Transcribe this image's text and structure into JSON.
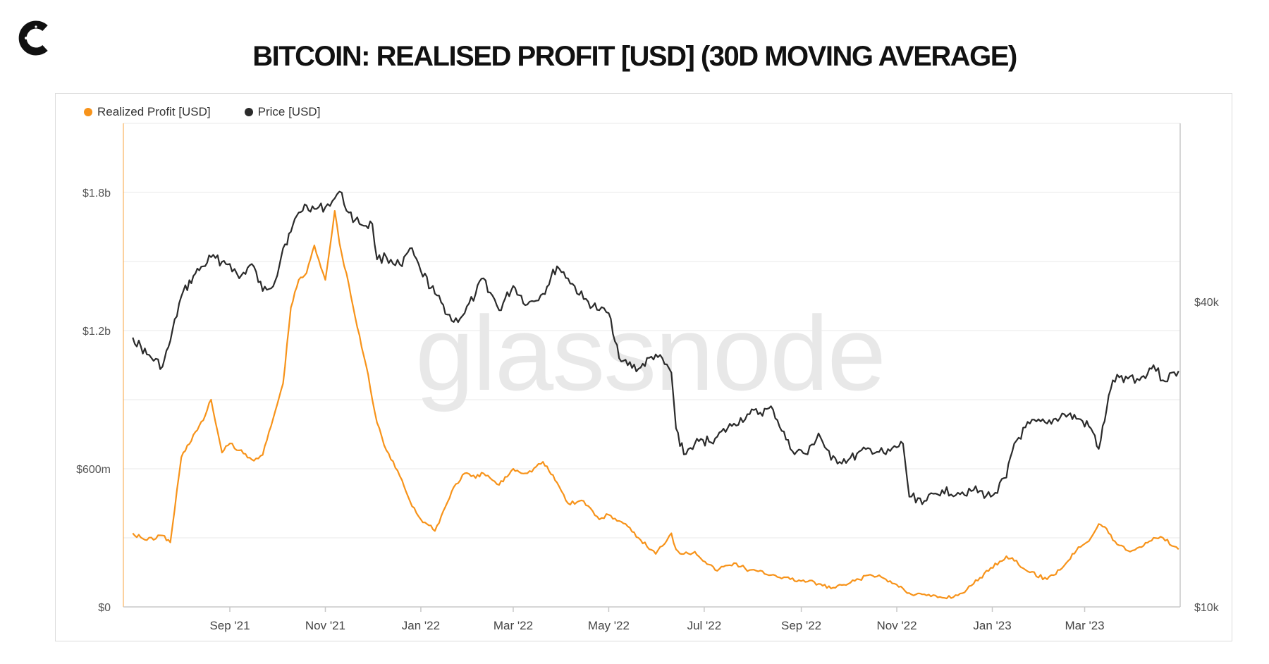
{
  "header": {
    "logo_icon": "cryptoslate-c-logo-icon",
    "title": "BITCOIN: REALISED PROFIT [USD] (30D MOVING AVERAGE)"
  },
  "colors": {
    "profit": "#f7931a",
    "price": "#2b2b2b",
    "grid": "#e9e9e9",
    "axis": "#c8c8c8"
  },
  "chart_data": {
    "type": "line",
    "title": "BITCOIN: REALISED PROFIT [USD] (30D MOVING AVERAGE)",
    "watermark": "glassnode",
    "legend_position": "top-left",
    "x": [
      "2021-07-01",
      "2021-07-10",
      "2021-07-20",
      "2021-07-25",
      "2021-08-01",
      "2021-08-10",
      "2021-08-15",
      "2021-08-20",
      "2021-08-27",
      "2021-09-01",
      "2021-09-07",
      "2021-09-15",
      "2021-09-22",
      "2021-09-30",
      "2021-10-05",
      "2021-10-10",
      "2021-10-15",
      "2021-10-20",
      "2021-10-25",
      "2021-11-01",
      "2021-11-07",
      "2021-11-10",
      "2021-11-16",
      "2021-11-20",
      "2021-11-27",
      "2021-12-01",
      "2021-12-04",
      "2021-12-10",
      "2021-12-20",
      "2021-12-25",
      "2022-01-01",
      "2022-01-10",
      "2022-01-22",
      "2022-01-29",
      "2022-02-05",
      "2022-02-10",
      "2022-02-20",
      "2022-03-01",
      "2022-03-10",
      "2022-03-20",
      "2022-03-29",
      "2022-04-05",
      "2022-04-15",
      "2022-04-25",
      "2022-05-01",
      "2022-05-09",
      "2022-05-20",
      "2022-05-31",
      "2022-06-10",
      "2022-06-13",
      "2022-06-18",
      "2022-06-25",
      "2022-07-08",
      "2022-07-20",
      "2022-07-30",
      "2022-08-14",
      "2022-08-25",
      "2022-09-05",
      "2022-09-12",
      "2022-09-20",
      "2022-10-01",
      "2022-10-15",
      "2022-10-25",
      "2022-11-05",
      "2022-11-09",
      "2022-11-20",
      "2022-11-30",
      "2022-12-10",
      "2022-12-20",
      "2022-12-31",
      "2023-01-10",
      "2023-01-15",
      "2023-01-25",
      "2023-02-05",
      "2023-02-16",
      "2023-02-25",
      "2023-03-05",
      "2023-03-10",
      "2023-03-15",
      "2023-03-19",
      "2023-03-30",
      "2023-04-05",
      "2023-04-14",
      "2023-04-20",
      "2023-04-30"
    ],
    "series": [
      {
        "name": "Realized Profit [USD]",
        "axis": "left",
        "values": [
          0.32,
          0.29,
          0.31,
          0.28,
          0.65,
          0.76,
          0.81,
          0.9,
          0.67,
          0.71,
          0.68,
          0.64,
          0.66,
          0.85,
          0.97,
          1.3,
          1.42,
          1.45,
          1.57,
          1.42,
          1.72,
          1.58,
          1.4,
          1.26,
          1.05,
          0.9,
          0.8,
          0.68,
          0.55,
          0.46,
          0.38,
          0.33,
          0.52,
          0.58,
          0.56,
          0.58,
          0.53,
          0.6,
          0.58,
          0.63,
          0.54,
          0.45,
          0.46,
          0.38,
          0.4,
          0.37,
          0.3,
          0.23,
          0.32,
          0.25,
          0.23,
          0.24,
          0.16,
          0.19,
          0.16,
          0.14,
          0.12,
          0.11,
          0.1,
          0.08,
          0.1,
          0.14,
          0.12,
          0.08,
          0.06,
          0.05,
          0.04,
          0.05,
          0.1,
          0.17,
          0.22,
          0.2,
          0.15,
          0.12,
          0.18,
          0.26,
          0.3,
          0.36,
          0.34,
          0.29,
          0.24,
          0.26,
          0.3,
          0.3,
          0.25
        ]
      },
      {
        "name": "Price [USD]",
        "axis": "right",
        "values": [
          34000,
          31500,
          29800,
          33500,
          41000,
          45500,
          47000,
          49000,
          48000,
          47500,
          44500,
          47500,
          42000,
          44000,
          51000,
          55000,
          60000,
          62000,
          61000,
          61500,
          64000,
          66000,
          60000,
          58000,
          56500,
          57000,
          48500,
          49000,
          47000,
          51000,
          46000,
          41500,
          36500,
          38000,
          41500,
          44500,
          38500,
          43000,
          39500,
          41500,
          47000,
          44500,
          40500,
          38500,
          38000,
          30500,
          29500,
          31500,
          29000,
          22500,
          20000,
          21000,
          21500,
          23000,
          24000,
          24500,
          20500,
          20000,
          22000,
          19500,
          19500,
          20500,
          20000,
          21000,
          16500,
          16200,
          17000,
          16800,
          17000,
          16500,
          18000,
          21000,
          23000,
          23000,
          24000,
          23500,
          22500,
          20500,
          24500,
          28000,
          28500,
          28000,
          30000,
          28000,
          29200
        ]
      }
    ],
    "y_left": {
      "range": [
        0,
        2.1
      ],
      "ticks": [
        0,
        0.6,
        1.2,
        1.8
      ],
      "tick_labels": [
        "$0",
        "$600m",
        "$1.2b",
        "$1.8b"
      ]
    },
    "y_right": {
      "scale": "log",
      "range": [
        10000,
        90000
      ],
      "ticks": [
        10000,
        40000
      ],
      "tick_labels": [
        "$10k",
        "$40k"
      ]
    },
    "x_axis": {
      "range": [
        "2021-06-25",
        "2023-05-01"
      ],
      "ticks": [
        "2021-09-01",
        "2021-11-01",
        "2022-01-01",
        "2022-03-01",
        "2022-05-01",
        "2022-07-01",
        "2022-09-01",
        "2022-11-01",
        "2023-01-01",
        "2023-03-01"
      ],
      "tick_labels": [
        "Sep '21",
        "Nov '21",
        "Jan '22",
        "Mar '22",
        "May '22",
        "Jul '22",
        "Sep '22",
        "Nov '22",
        "Jan '23",
        "Mar '23"
      ]
    },
    "grid": true
  }
}
